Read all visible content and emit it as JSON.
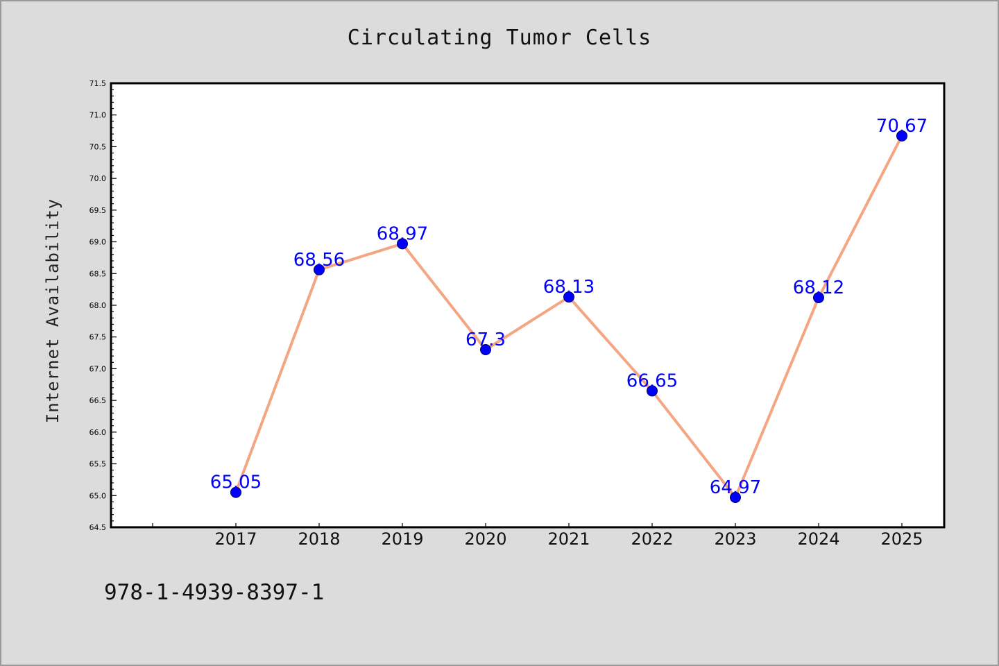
{
  "chart_data": {
    "type": "line",
    "title": "Circulating Tumor Cells",
    "xlabel": "",
    "ylabel": "Internet Availability",
    "categories": [
      "2017",
      "2018",
      "2019",
      "2020",
      "2021",
      "2022",
      "2023",
      "2024",
      "2025"
    ],
    "series": [
      {
        "values": [
          65.05,
          68.56,
          68.97,
          67.3,
          68.13,
          66.65,
          64.97,
          68.12,
          70.67
        ],
        "labels": [
          "65.05",
          "68.56",
          "68.97",
          "67.3",
          "68.13",
          "66.65",
          "64.97",
          "68.12",
          "70.67"
        ],
        "line_color": "#f4a582",
        "marker_color": "#0000ff",
        "label_color": "#0000ff"
      }
    ],
    "ylim": [
      64.5,
      71.5
    ],
    "yticks": [
      "64.5",
      "65.0",
      "65.5",
      "66.0",
      "66.5",
      "67.0",
      "67.5",
      "68.0",
      "68.5",
      "69.0",
      "69.5",
      "70.0",
      "70.5",
      "71.0",
      "71.5"
    ],
    "grid": false,
    "legend": "none"
  },
  "footer": {
    "text": "978-1-4939-8397-1"
  },
  "colors": {
    "background": "#dcdcdc",
    "plot_background": "#ffffff"
  }
}
